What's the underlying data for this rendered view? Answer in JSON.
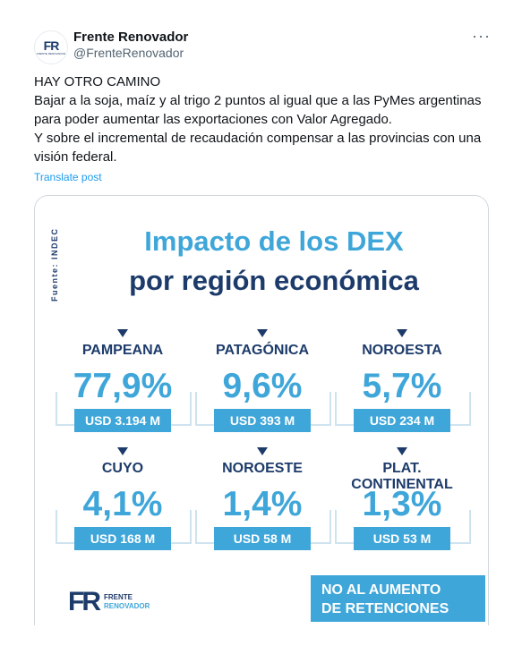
{
  "author": {
    "avatar_text": "FR",
    "avatar_sub": "FRENTE RENOVADOR",
    "name": "Frente Renovador",
    "handle": "@FrenteRenovador"
  },
  "more_icon": "···",
  "post": {
    "lines": [
      "HAY OTRO CAMINO",
      "Bajar a la soja, maíz y al trigo 2 puntos al igual que a las PyMes argentinas para poder aumentar las exportaciones con Valor Agregado.",
      "Y sobre el incremental de recaudación compensar a las provincias con una visión federal."
    ],
    "translate": "Translate post"
  },
  "infographic": {
    "source": "Fuente: INDEC",
    "title_line1": "Impacto de los DEX",
    "title_line2": "por región económica",
    "regions": [
      {
        "name": "PAMPEANA",
        "pct": "77,9%",
        "usd": "USD 3.194 M"
      },
      {
        "name": "PATAGÓNICA",
        "pct": "9,6%",
        "usd": "USD 393 M"
      },
      {
        "name": "NOROESTA",
        "pct": "5,7%",
        "usd": "USD 234 M"
      },
      {
        "name": "CUYO",
        "pct": "4,1%",
        "usd": "USD 168 M"
      },
      {
        "name": "NOROESTE",
        "pct": "1,4%",
        "usd": "USD 58 M"
      },
      {
        "name": "PLAT. CONTINENTAL",
        "pct": "1,3%",
        "usd": "USD 53 M"
      }
    ],
    "logo_mark": "FR",
    "logo_word1": "FRENTE",
    "logo_word2": "RENOVADOR",
    "cta_line1": "NO AL AUMENTO",
    "cta_line2": "DE RETENCIONES"
  },
  "colors": {
    "navy": "#1d3b6a",
    "light_blue": "#3fa6d9",
    "link_blue": "#1d9bf0"
  }
}
